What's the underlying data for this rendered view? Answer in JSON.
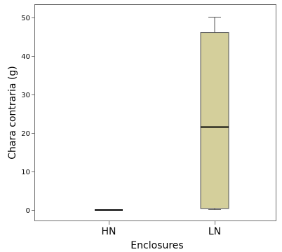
{
  "chart_data": {
    "type": "box",
    "title": "",
    "xlabel": "Enclosures",
    "ylabel": "Chara contraria (g)",
    "ylim": [
      -3,
      52
    ],
    "yticks": [
      0,
      10,
      20,
      30,
      40,
      50
    ],
    "categories": [
      "HN",
      "LN"
    ],
    "boxes": [
      {
        "category": "HN",
        "min": 0,
        "q1": 0,
        "median": 0,
        "q3": 0,
        "max": 0
      },
      {
        "category": "LN",
        "min": 0.1,
        "q1": 0.4,
        "median": 21.5,
        "q3": 46,
        "max": 50
      }
    ],
    "grid": false,
    "colors": {
      "box_fill": "#d4cf9b",
      "box_stroke": "#555555",
      "frame": "#6e6e6e",
      "median": "#000000"
    }
  }
}
